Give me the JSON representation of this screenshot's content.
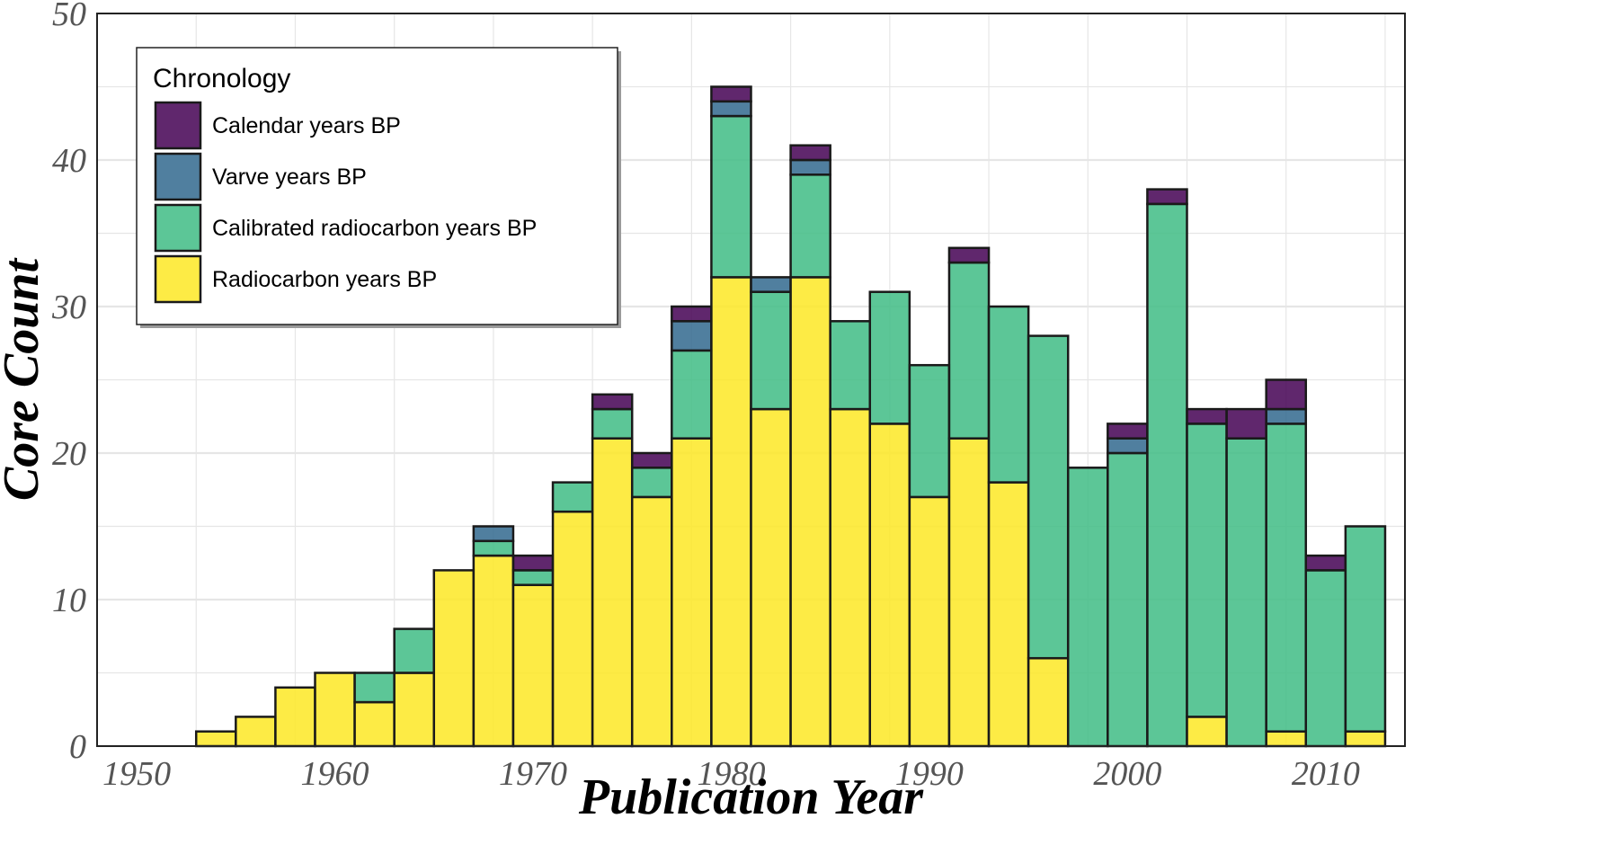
{
  "chart_data": {
    "type": "bar",
    "stacked": true,
    "xlabel": "Publication Year",
    "ylabel": "Core Count",
    "xlim": [
      1948,
      2014
    ],
    "ylim": [
      0,
      50
    ],
    "x_ticks": [
      1950,
      1960,
      1970,
      1980,
      1990,
      2000,
      2010
    ],
    "y_ticks": [
      0,
      10,
      20,
      30,
      40,
      50
    ],
    "bin_width": 2,
    "grid": true,
    "legend": {
      "title": "Chronology",
      "placement": "top-left",
      "entries": [
        "Calendar years BP",
        "Varve years BP",
        "Calibrated radiocarbon years BP",
        "Radiocarbon years BP"
      ]
    },
    "bin_centers": [
      1954,
      1956,
      1958,
      1960,
      1962,
      1964,
      1966,
      1968,
      1970,
      1972,
      1974,
      1976,
      1978,
      1980,
      1982,
      1984,
      1986,
      1988,
      1990,
      1992,
      1994,
      1996,
      1998,
      2000,
      2002,
      2004,
      2006,
      2008,
      2010,
      2012
    ],
    "series": [
      {
        "name": "Radiocarbon years BP",
        "color": "#FDE725",
        "values": [
          1,
          2,
          4,
          5,
          3,
          5,
          12,
          13,
          11,
          16,
          21,
          17,
          21,
          32,
          23,
          32,
          23,
          22,
          17,
          21,
          18,
          6,
          0,
          0,
          0,
          2,
          0,
          1,
          0,
          1
        ]
      },
      {
        "name": "Calibrated radiocarbon years BP",
        "color": "#3FBC85",
        "values": [
          0,
          0,
          0,
          0,
          2,
          3,
          0,
          1,
          1,
          2,
          2,
          2,
          6,
          11,
          8,
          7,
          6,
          9,
          9,
          12,
          12,
          22,
          19,
          20,
          37,
          20,
          21,
          21,
          12,
          14
        ]
      },
      {
        "name": "Varve years BP",
        "color": "#31688E",
        "values": [
          0,
          0,
          0,
          0,
          0,
          0,
          0,
          1,
          0,
          0,
          0,
          0,
          2,
          1,
          1,
          1,
          0,
          0,
          0,
          0,
          0,
          0,
          0,
          1,
          0,
          0,
          0,
          1,
          0,
          0
        ]
      },
      {
        "name": "Calendar years BP",
        "color": "#440154",
        "values": [
          0,
          0,
          0,
          0,
          0,
          0,
          0,
          0,
          1,
          0,
          1,
          1,
          1,
          1,
          0,
          1,
          0,
          0,
          0,
          1,
          0,
          0,
          0,
          1,
          1,
          1,
          2,
          2,
          1,
          0
        ]
      }
    ]
  }
}
